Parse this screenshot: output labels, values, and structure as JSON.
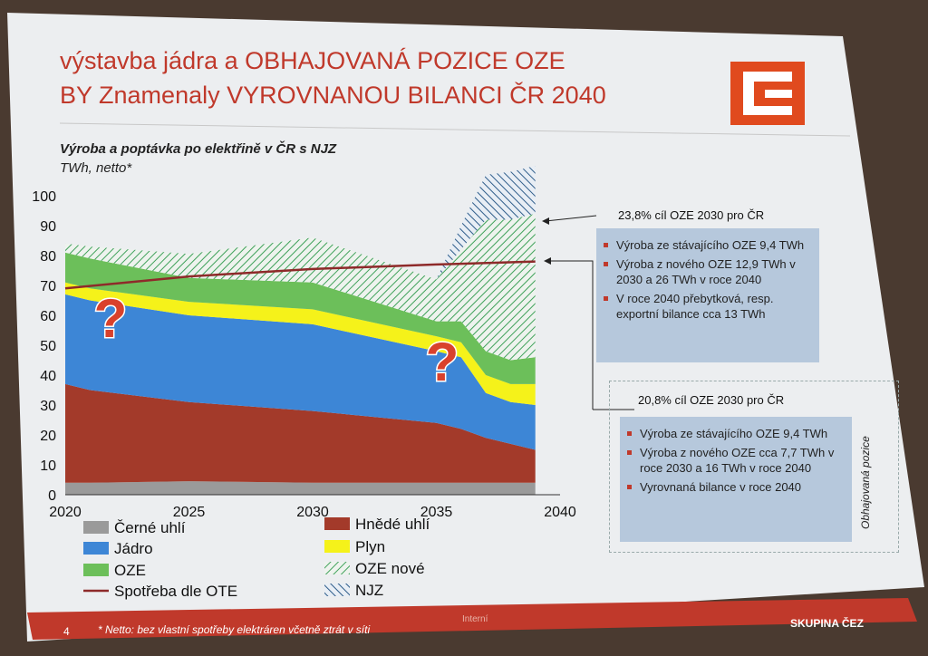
{
  "title": {
    "line1": "výstavba jádra a OBHAJOVANÁ POZICE OZE",
    "line2": "BY Znamenaly VYROVNANOU BILANCI ČR 2040"
  },
  "subtitle": {
    "line1": "Výroba a poptávka po elektřině v ČR s NJZ",
    "line2": "TWh, netto*"
  },
  "question_mark": "?",
  "box1": {
    "header": "23,8% cíl OZE 2030 pro ČR",
    "items": [
      "Výroba ze stávajícího OZE 9,4 TWh",
      "Výroba z nového OZE 12,9 TWh v 2030 a 26 TWh v roce 2040",
      "V roce 2040 přebytková, resp. exportní bilance cca 13 TWh"
    ]
  },
  "box2": {
    "header": "20,8% cíl OZE 2030 pro ČR",
    "items": [
      "Výroba ze stávajícího OZE 9,4 TWh",
      "Výroba z nového OZE cca 7,7 TWh v roce 2030 a 16 TWh v roce 2040",
      "Vyrovnaná bilance v roce 2040"
    ],
    "side_label": "Obhajovaná pozice"
  },
  "footer": {
    "page": "4",
    "note": "* Netto: bez vlastní spotřeby elektráren včetně ztrát v síti",
    "internal": "Interní",
    "brand": "SKUPINA ČEZ"
  },
  "colors": {
    "cerne_uhli": "#9a9a9a",
    "hnede_uhli": "#a33a2a",
    "jadro": "#3d86d6",
    "plyn": "#f5f21a",
    "oze": "#6cbf5a",
    "oze_nove": "#3fa15a",
    "njz": "#2f5d8a",
    "spotreba": "#8e2a2a",
    "accent": "#c0392b"
  },
  "chart_data": {
    "type": "area",
    "ylim": [
      0,
      100
    ],
    "xlim": [
      2020,
      2040
    ],
    "yticks": [
      "0",
      "10",
      "20",
      "30",
      "40",
      "50",
      "60",
      "70",
      "80",
      "90",
      "100"
    ],
    "xticks": [
      "2020",
      "2025",
      "2030",
      "2035",
      "2040"
    ],
    "x": [
      2020,
      2021,
      2025,
      2030,
      2035,
      2036,
      2037,
      2038,
      2039
    ],
    "series": [
      {
        "name": "Černé uhlí",
        "values": [
          4,
          4,
          4.5,
          4,
          4,
          4,
          4,
          4,
          4
        ]
      },
      {
        "name": "Hnědé uhlí",
        "values": [
          33,
          31,
          26.5,
          24,
          20,
          18,
          15,
          13,
          11
        ]
      },
      {
        "name": "Jádro",
        "values": [
          30,
          30,
          29,
          29,
          24,
          24,
          15,
          14,
          15
        ]
      },
      {
        "name": "Plyn",
        "values": [
          4,
          4,
          4.5,
          5,
          5,
          5,
          6,
          6,
          7
        ]
      },
      {
        "name": "OZE",
        "values": [
          10,
          10,
          8,
          9,
          5,
          7,
          8,
          8,
          9
        ]
      },
      {
        "name": "OZE nové",
        "values": [
          3,
          4,
          8,
          15,
          14,
          24,
          44,
          47,
          48
        ]
      },
      {
        "name": "NJZ",
        "values": [
          0,
          0,
          0,
          0,
          0,
          8,
          15,
          16,
          16
        ]
      }
    ],
    "line": {
      "name": "Spotřeba dle OTE",
      "x": [
        2020,
        2025,
        2030,
        2035,
        2039
      ],
      "values": [
        69,
        73,
        75.5,
        77,
        78
      ]
    },
    "legend": [
      {
        "label": "Černé uhlí",
        "key": "cerne_uhli",
        "kind": "solid"
      },
      {
        "label": "Hnědé uhlí",
        "key": "hnede_uhli",
        "kind": "solid"
      },
      {
        "label": "Jádro",
        "key": "jadro",
        "kind": "solid"
      },
      {
        "label": "Plyn",
        "key": "plyn",
        "kind": "solid"
      },
      {
        "label": "OZE",
        "key": "oze",
        "kind": "solid"
      },
      {
        "label": "OZE nové",
        "key": "oze_nove",
        "kind": "hatch-green"
      },
      {
        "label": "Spotřeba dle OTE",
        "key": "spotreba",
        "kind": "line"
      },
      {
        "label": "NJZ",
        "key": "njz",
        "kind": "hatch-blue"
      }
    ]
  }
}
